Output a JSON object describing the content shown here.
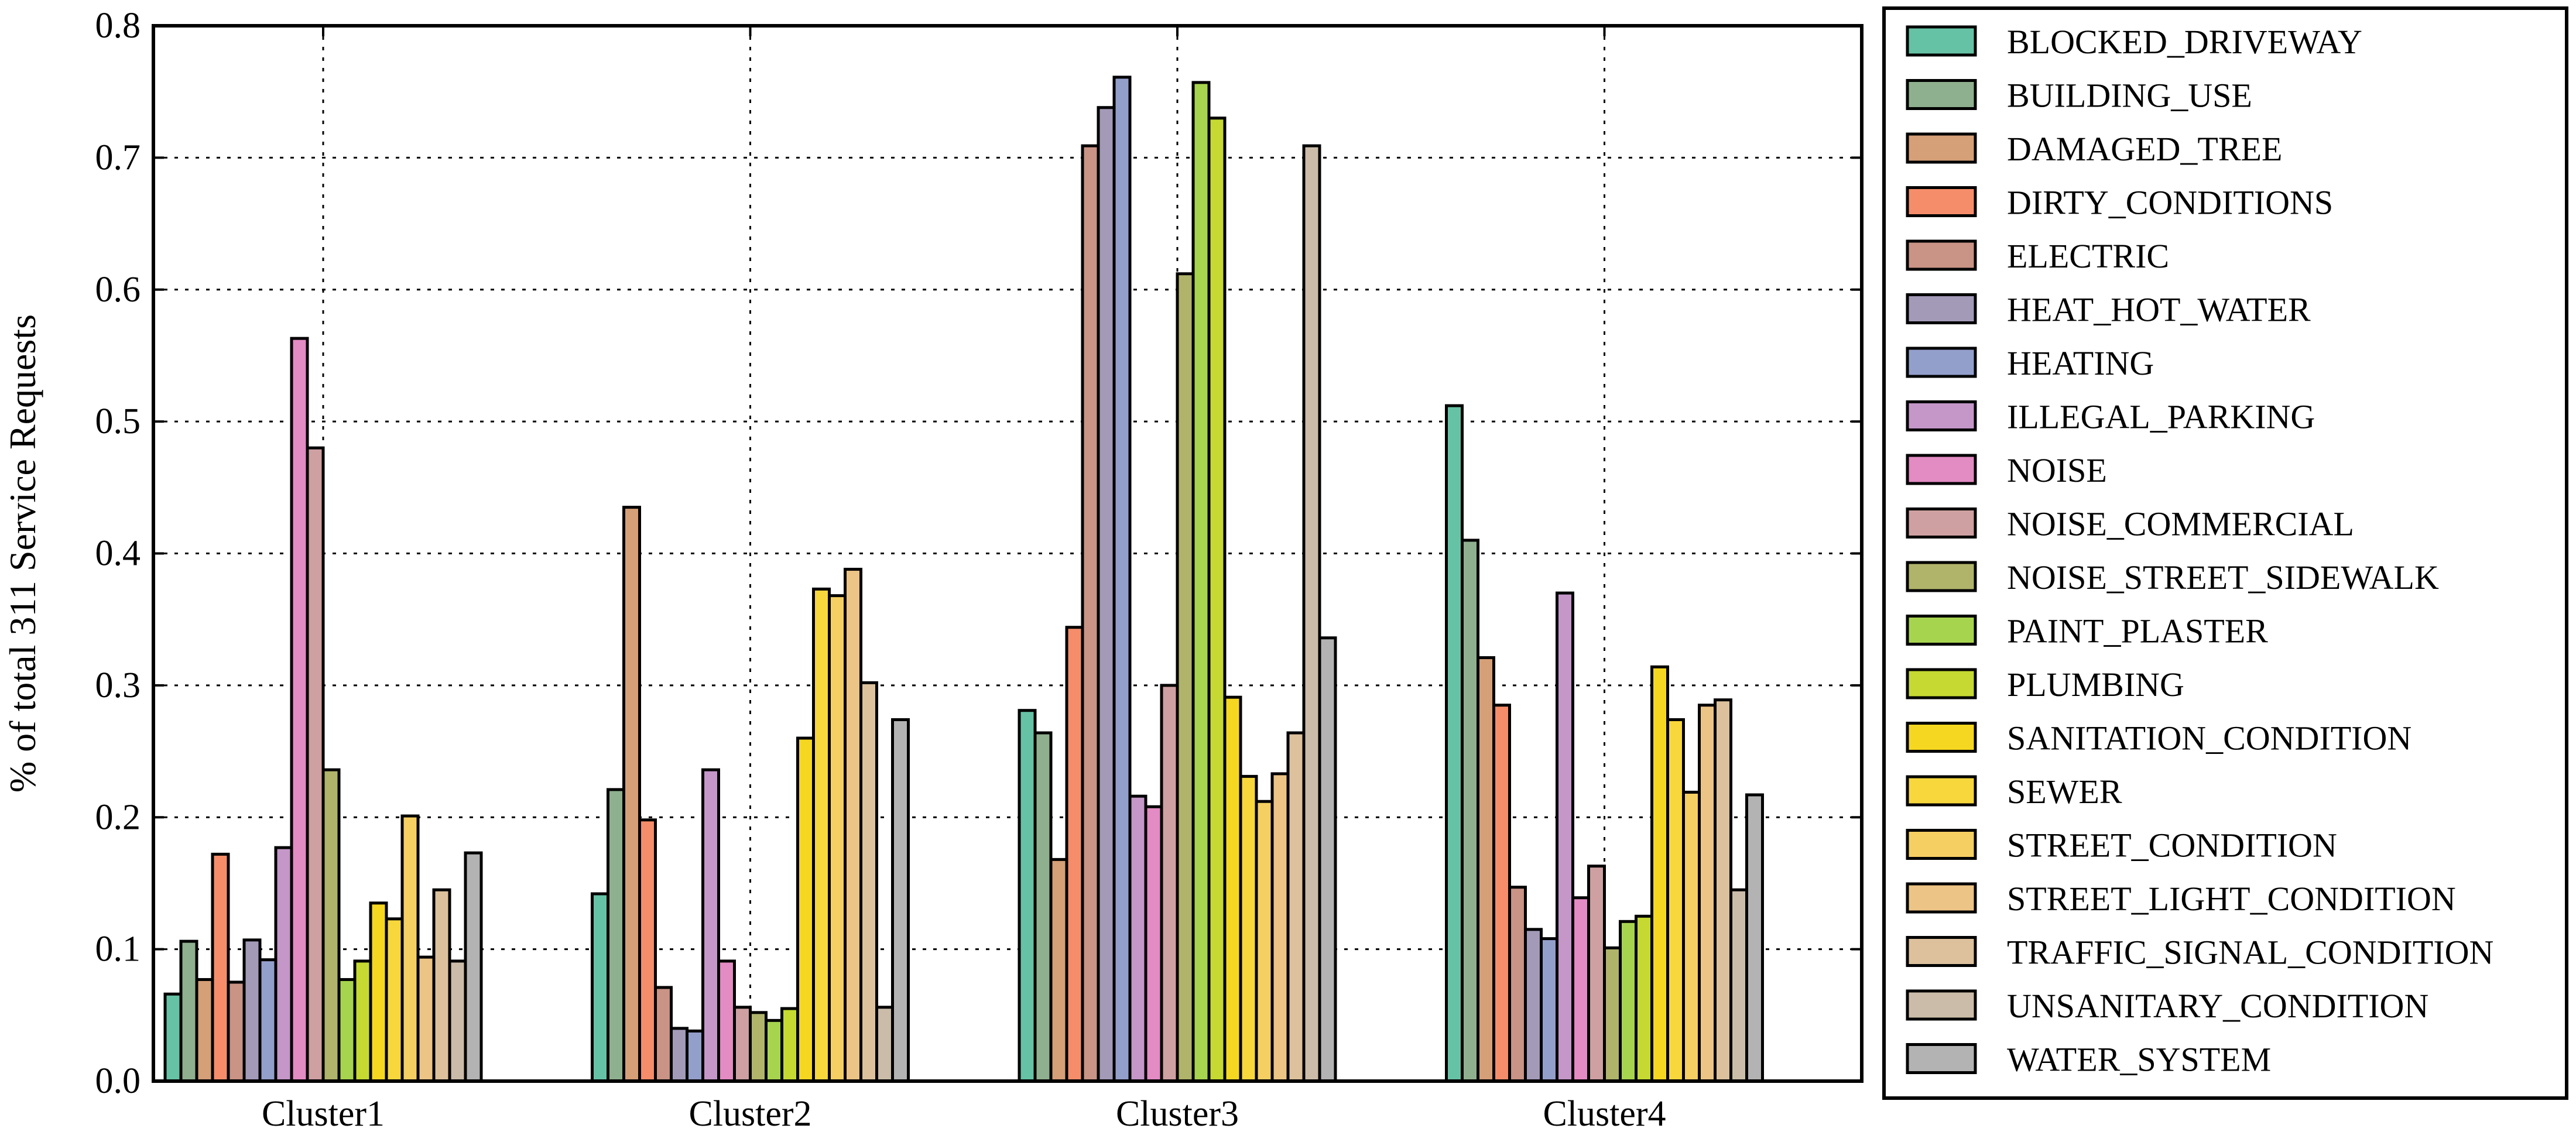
{
  "chart_data": {
    "type": "bar",
    "ylabel": "% of total 311 Service Requests",
    "xlabel": "",
    "ylim": [
      0,
      0.8
    ],
    "yticks": [
      "0.0",
      "0.1",
      "0.2",
      "0.3",
      "0.4",
      "0.5",
      "0.6",
      "0.7",
      "0.8"
    ],
    "grid": true,
    "legend_position": "right-outside",
    "categories": [
      "Cluster1",
      "Cluster2",
      "Cluster3",
      "Cluster4"
    ],
    "series": [
      {
        "name": "BLOCKED_DRIVEWAY",
        "color": "#66c2a5",
        "values": [
          0.066,
          0.142,
          0.281,
          0.512
        ]
      },
      {
        "name": "BUILDING_USE",
        "color": "#8fb08e",
        "values": [
          0.106,
          0.221,
          0.264,
          0.41
        ]
      },
      {
        "name": "DAMAGED_TREE",
        "color": "#d59f77",
        "values": [
          0.077,
          0.435,
          0.168,
          0.321
        ]
      },
      {
        "name": "DIRTY_CONDITIONS",
        "color": "#f58d6a",
        "values": [
          0.172,
          0.198,
          0.344,
          0.285
        ]
      },
      {
        "name": "ELECTRIC",
        "color": "#c99385",
        "values": [
          0.075,
          0.071,
          0.709,
          0.147
        ]
      },
      {
        "name": "HEAT_HOT_WATER",
        "color": "#a39ab8",
        "values": [
          0.107,
          0.04,
          0.738,
          0.115
        ]
      },
      {
        "name": "HEATING",
        "color": "#939fcb",
        "values": [
          0.092,
          0.038,
          0.761,
          0.108
        ]
      },
      {
        "name": "ILLEGAL_PARKING",
        "color": "#c497c8",
        "values": [
          0.177,
          0.236,
          0.216,
          0.37
        ]
      },
      {
        "name": "NOISE",
        "color": "#e38bc3",
        "values": [
          0.563,
          0.091,
          0.208,
          0.139
        ]
      },
      {
        "name": "NOISE_COMMERCIAL",
        "color": "#cfa0a1",
        "values": [
          0.48,
          0.056,
          0.3,
          0.163
        ]
      },
      {
        "name": "NOISE_STREET_SIDEWALK",
        "color": "#b0b46b",
        "values": [
          0.236,
          0.052,
          0.612,
          0.101
        ]
      },
      {
        "name": "PAINT_PLASTER",
        "color": "#a7d44f",
        "values": [
          0.077,
          0.046,
          0.757,
          0.121
        ]
      },
      {
        "name": "PLUMBING",
        "color": "#c5d932",
        "values": [
          0.091,
          0.055,
          0.73,
          0.125
        ]
      },
      {
        "name": "SANITATION_CONDITION",
        "color": "#f5d721",
        "values": [
          0.135,
          0.26,
          0.291,
          0.314
        ]
      },
      {
        "name": "SEWER",
        "color": "#f8d73d",
        "values": [
          0.123,
          0.373,
          0.231,
          0.274
        ]
      },
      {
        "name": "STREET_CONDITION",
        "color": "#f6cf63",
        "values": [
          0.201,
          0.368,
          0.212,
          0.219
        ]
      },
      {
        "name": "STREET_LIGHT_CONDITION",
        "color": "#ecc485",
        "values": [
          0.094,
          0.388,
          0.233,
          0.285
        ]
      },
      {
        "name": "TRAFFIC_SIGNAL_CONDITION",
        "color": "#dcc19c",
        "values": [
          0.145,
          0.302,
          0.264,
          0.289
        ]
      },
      {
        "name": "UNSANITARY_CONDITION",
        "color": "#cbbca9",
        "values": [
          0.091,
          0.056,
          0.709,
          0.145
        ]
      },
      {
        "name": "WATER_SYSTEM",
        "color": "#b3b3b3",
        "values": [
          0.173,
          0.274,
          0.336,
          0.217
        ]
      }
    ]
  }
}
